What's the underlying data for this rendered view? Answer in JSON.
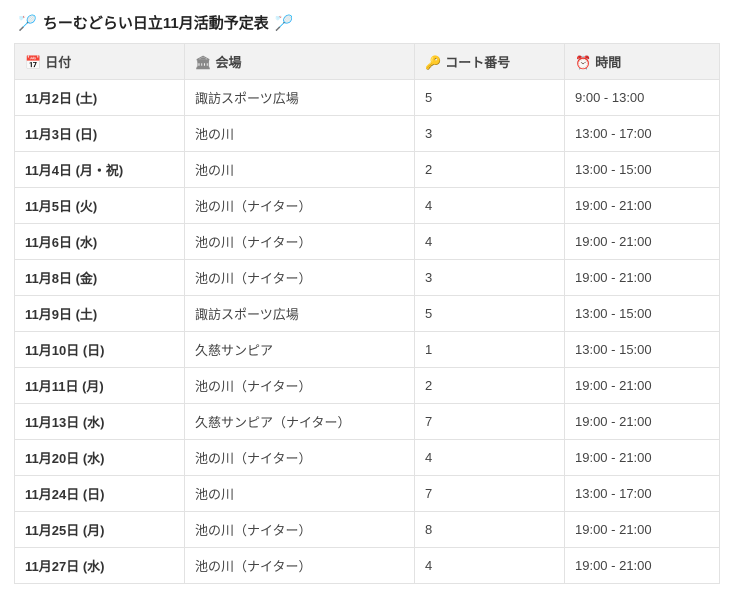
{
  "title": "ちーむどらい日立11月活動予定表",
  "icons": {
    "racket": "🏸",
    "calendar": "📅",
    "venue": "🏛",
    "key": "🔑",
    "clock": "⏰"
  },
  "columns": {
    "date": "日付",
    "venue": "会場",
    "court": "コート番号",
    "time": "時間"
  },
  "rows": [
    {
      "date": "11月2日 (土)",
      "venue": "諏訪スポーツ広場",
      "court": "5",
      "time": "9:00 - 13:00"
    },
    {
      "date": "11月3日 (日)",
      "venue": "池の川",
      "court": "3",
      "time": "13:00 - 17:00"
    },
    {
      "date": "11月4日 (月・祝)",
      "venue": "池の川",
      "court": "2",
      "time": "13:00 - 15:00"
    },
    {
      "date": "11月5日 (火)",
      "venue": "池の川（ナイター）",
      "court": "4",
      "time": "19:00 - 21:00"
    },
    {
      "date": "11月6日 (水)",
      "venue": "池の川（ナイター）",
      "court": "4",
      "time": "19:00 - 21:00"
    },
    {
      "date": "11月8日 (金)",
      "venue": "池の川（ナイター）",
      "court": "3",
      "time": "19:00 - 21:00"
    },
    {
      "date": "11月9日 (土)",
      "venue": "諏訪スポーツ広場",
      "court": "5",
      "time": "13:00 - 15:00"
    },
    {
      "date": "11月10日 (日)",
      "venue": "久慈サンピア",
      "court": "1",
      "time": "13:00 - 15:00"
    },
    {
      "date": "11月11日 (月)",
      "venue": "池の川（ナイター）",
      "court": "2",
      "time": "19:00 - 21:00"
    },
    {
      "date": "11月13日 (水)",
      "venue": "久慈サンピア（ナイター）",
      "court": "7",
      "time": "19:00 - 21:00"
    },
    {
      "date": "11月20日 (水)",
      "venue": "池の川（ナイター）",
      "court": "4",
      "time": "19:00 - 21:00"
    },
    {
      "date": "11月24日 (日)",
      "venue": "池の川",
      "court": "7",
      "time": "13:00 - 17:00"
    },
    {
      "date": "11月25日 (月)",
      "venue": "池の川（ナイター）",
      "court": "8",
      "time": "19:00 - 21:00"
    },
    {
      "date": "11月27日 (水)",
      "venue": "池の川（ナイター）",
      "court": "4",
      "time": "19:00 - 21:00"
    }
  ]
}
